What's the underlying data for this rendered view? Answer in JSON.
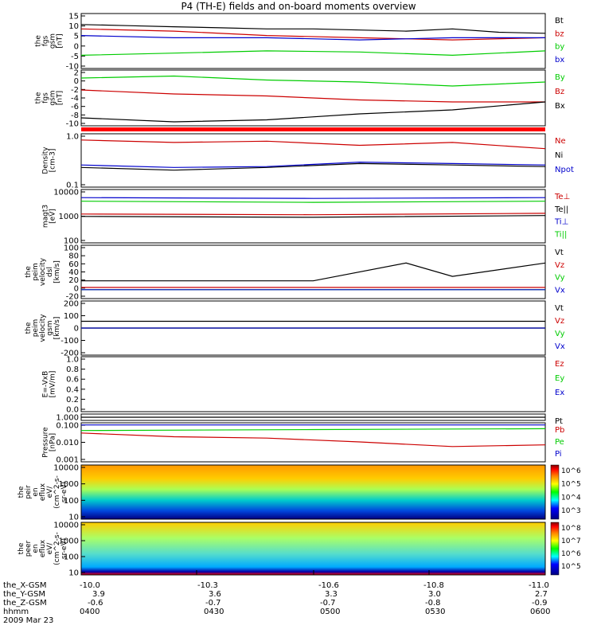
{
  "title": "P4 (TH-E) fields and on-board moments overview",
  "date": "2009 Mar 23",
  "chart_data": [
    {
      "type": "line",
      "ylabel": [
        "the",
        "fgs",
        "gsm",
        "[nT]"
      ],
      "ylim": [
        -10,
        15
      ],
      "yticks": [
        "15",
        "10",
        "5",
        "0",
        "-5",
        "-10"
      ],
      "legend": [
        {
          "name": "Bt",
          "color": "#000000"
        },
        {
          "name": "bz",
          "color": "#cc0000"
        },
        {
          "name": "by",
          "color": "#00cc00"
        },
        {
          "name": "bx",
          "color": "#0000cc"
        }
      ],
      "series": [
        {
          "name": "Bt",
          "color": "#000000",
          "x": [
            0,
            0.1,
            0.2,
            0.3,
            0.4,
            0.5,
            0.6,
            0.7,
            0.8,
            0.9,
            1.0
          ],
          "y": [
            10,
            9.5,
            9,
            8.5,
            8,
            8,
            7.5,
            7,
            8,
            6.5,
            6
          ]
        },
        {
          "name": "bz",
          "color": "#cc0000",
          "x": [
            0,
            0.2,
            0.4,
            0.6,
            0.8,
            1.0
          ],
          "y": [
            8,
            7,
            5,
            4,
            3,
            4
          ]
        },
        {
          "name": "by",
          "color": "#00cc00",
          "x": [
            0,
            0.2,
            0.4,
            0.6,
            0.8,
            1.0
          ],
          "y": [
            -4,
            -3,
            -2,
            -2.5,
            -4,
            -2
          ]
        },
        {
          "name": "bx",
          "color": "#0000cc",
          "x": [
            0,
            0.2,
            0.4,
            0.6,
            0.8,
            1.0
          ],
          "y": [
            5,
            4,
            4,
            3,
            4,
            4
          ]
        }
      ]
    },
    {
      "type": "line",
      "ylabel": [
        "the",
        "fgs",
        "gsm",
        "[nT]"
      ],
      "ylim": [
        -11,
        3
      ],
      "yticks": [
        "2",
        "0",
        "-2",
        "-4",
        "-6",
        "-8",
        "-10"
      ],
      "legend": [
        {
          "name": "By",
          "color": "#00cc00"
        },
        {
          "name": "Bz",
          "color": "#cc0000"
        },
        {
          "name": "Bx",
          "color": "#000000"
        }
      ],
      "series": [
        {
          "name": "By",
          "color": "#00cc00",
          "x": [
            0,
            0.2,
            0.4,
            0.6,
            0.8,
            1.0
          ],
          "y": [
            1,
            1.5,
            0.5,
            0,
            -1,
            0
          ]
        },
        {
          "name": "Bz",
          "color": "#cc0000",
          "x": [
            0,
            0.2,
            0.4,
            0.6,
            0.8,
            1.0
          ],
          "y": [
            -2,
            -3,
            -3.5,
            -4.5,
            -5,
            -5
          ]
        },
        {
          "name": "Bx",
          "color": "#000000",
          "x": [
            0,
            0.2,
            0.4,
            0.6,
            0.8,
            1.0
          ],
          "y": [
            -9,
            -10,
            -9.5,
            -8,
            -7,
            -5
          ]
        }
      ]
    },
    {
      "type": "line",
      "ylabel": [
        "Density",
        "[cm-3]"
      ],
      "ylim": [
        0.1,
        1.2
      ],
      "yticks": [
        "1.0",
        "0.1"
      ],
      "legend": [
        {
          "name": "Ne",
          "color": "#cc0000"
        },
        {
          "name": "Ni",
          "color": "#000000"
        },
        {
          "name": "Npot",
          "color": "#0000cc"
        }
      ],
      "series": [
        {
          "name": "Ne",
          "color": "#cc0000",
          "x": [
            0,
            0.2,
            0.4,
            0.6,
            0.8,
            1.0
          ],
          "y": [
            0.9,
            0.8,
            0.85,
            0.7,
            0.8,
            0.6
          ]
        },
        {
          "name": "Ni",
          "color": "#000000",
          "x": [
            0,
            0.2,
            0.4,
            0.6,
            0.8,
            1.0
          ],
          "y": [
            0.25,
            0.22,
            0.25,
            0.3,
            0.28,
            0.26
          ]
        },
        {
          "name": "Npot",
          "color": "#0000cc",
          "x": [
            0,
            0.2,
            0.4,
            0.6,
            0.8,
            1.0
          ],
          "y": [
            0.28,
            0.25,
            0.26,
            0.32,
            0.3,
            0.28
          ]
        }
      ]
    },
    {
      "type": "line",
      "ylabel": [
        "magt3",
        "[eV]"
      ],
      "ylim": [
        100,
        15000
      ],
      "yticks": [
        "10000",
        "1000",
        "100"
      ],
      "legend": [
        {
          "name": "Te⊥",
          "color": "#cc0000"
        },
        {
          "name": "Te||",
          "color": "#000000"
        },
        {
          "name": "Ti⊥",
          "color": "#0000cc"
        },
        {
          "name": "Ti||",
          "color": "#00cc00"
        }
      ],
      "series": [
        {
          "name": "Ti⊥",
          "color": "#0000cc",
          "x": [
            0,
            0.5,
            1.0
          ],
          "y": [
            7000,
            6500,
            7000
          ]
        },
        {
          "name": "Ti||",
          "color": "#00cc00",
          "x": [
            0,
            0.5,
            1.0
          ],
          "y": [
            5000,
            4500,
            5000
          ]
        },
        {
          "name": "Te⊥",
          "color": "#cc0000",
          "x": [
            0,
            0.5,
            1.0
          ],
          "y": [
            1500,
            1400,
            1600
          ]
        },
        {
          "name": "Te||",
          "color": "#000000",
          "x": [
            0,
            0.5,
            1.0
          ],
          "y": [
            1200,
            1100,
            1300
          ]
        }
      ]
    },
    {
      "type": "line",
      "ylabel": [
        "the",
        "peim",
        "velocity",
        "dsl",
        "[km/s]"
      ],
      "ylim": [
        -20,
        100
      ],
      "yticks": [
        "100",
        "80",
        "60",
        "40",
        "20",
        "0",
        "-20"
      ],
      "legend": [
        {
          "name": "Vt",
          "color": "#000000"
        },
        {
          "name": "Vz",
          "color": "#cc0000"
        },
        {
          "name": "Vy",
          "color": "#00cc00"
        },
        {
          "name": "Vx",
          "color": "#0000cc"
        }
      ],
      "series": [
        {
          "name": "Vt",
          "color": "#000000",
          "x": [
            0,
            0.5,
            0.7,
            0.8,
            1.0
          ],
          "y": [
            20,
            20,
            60,
            30,
            60
          ]
        },
        {
          "name": "Vz",
          "color": "#cc0000",
          "x": [
            0,
            1.0
          ],
          "y": [
            5,
            5
          ]
        },
        {
          "name": "Vy",
          "color": "#00cc00",
          "x": [
            0,
            1.0
          ],
          "y": [
            0,
            0
          ]
        },
        {
          "name": "Vx",
          "color": "#0000cc",
          "x": [
            0,
            1.0
          ],
          "y": [
            0,
            0
          ]
        }
      ]
    },
    {
      "type": "line",
      "ylabel": [
        "the",
        "peim",
        "velocity",
        "gsm",
        "[km/s]"
      ],
      "ylim": [
        -200,
        200
      ],
      "yticks": [
        "200",
        "100",
        "0",
        "-100",
        "-200"
      ],
      "legend": [
        {
          "name": "Vt",
          "color": "#000000"
        },
        {
          "name": "Vz",
          "color": "#cc0000"
        },
        {
          "name": "Vy",
          "color": "#00cc00"
        },
        {
          "name": "Vx",
          "color": "#0000cc"
        }
      ],
      "series": [
        {
          "name": "Vt",
          "color": "#000000",
          "x": [
            0,
            1.0
          ],
          "y": [
            50,
            50
          ]
        },
        {
          "name": "Vz",
          "color": "#cc0000",
          "x": [
            0,
            1.0
          ],
          "y": [
            0,
            0
          ]
        },
        {
          "name": "Vy",
          "color": "#00cc00",
          "x": [
            0,
            1.0
          ],
          "y": [
            0,
            0
          ]
        },
        {
          "name": "Vx",
          "color": "#0000cc",
          "x": [
            0,
            1.0
          ],
          "y": [
            0,
            0
          ]
        }
      ]
    },
    {
      "type": "line",
      "ylabel": [
        "E=-VxB",
        "[mV/m]"
      ],
      "ylim": [
        0,
        1
      ],
      "yticks": [
        "1.0",
        "0.8",
        "0.6",
        "0.4",
        "0.2",
        "0.0"
      ],
      "legend": [
        {
          "name": "Ez",
          "color": "#cc0000"
        },
        {
          "name": "Ey",
          "color": "#00cc00"
        },
        {
          "name": "Ex",
          "color": "#0000cc"
        }
      ],
      "series": []
    },
    {
      "type": "line",
      "ylabel": [],
      "ylim": [
        0,
        1
      ],
      "yticks": [
        "1.000"
      ],
      "legend": [
        {
          "name": "Pt",
          "color": "#000000"
        }
      ],
      "series": [
        {
          "name": "Pt",
          "color": "#000000",
          "x": [
            0,
            1.0
          ],
          "y": [
            0.5,
            0.5
          ]
        }
      ]
    },
    {
      "type": "line",
      "ylabel": [
        "Pressure",
        "[nPa]"
      ],
      "ylim": [
        0.001,
        0.2
      ],
      "yticks": [
        "0.100",
        "0.010",
        "0.001"
      ],
      "legend": [
        {
          "name": "Pb",
          "color": "#cc0000"
        },
        {
          "name": "Pe",
          "color": "#00cc00"
        },
        {
          "name": "Pi",
          "color": "#0000cc"
        }
      ],
      "series": [
        {
          "name": "Pb",
          "color": "#cc0000",
          "x": [
            0,
            0.2,
            0.4,
            0.6,
            0.8,
            1.0
          ],
          "y": [
            0.05,
            0.03,
            0.025,
            0.015,
            0.008,
            0.01
          ]
        },
        {
          "name": "Pe",
          "color": "#00cc00",
          "x": [
            0,
            0.5,
            1.0
          ],
          "y": [
            0.07,
            0.08,
            0.09
          ]
        },
        {
          "name": "Pi",
          "color": "#0000cc",
          "x": [
            0,
            1.0
          ],
          "y": [
            0.15,
            0.15
          ]
        }
      ]
    },
    {
      "type": "heatmap",
      "ylabel": [
        "the",
        "peir",
        "en",
        "eflux",
        "eV/",
        "(cm^2-s-",
        "sr-eV)"
      ],
      "yticks": [
        "10000",
        "1000",
        "100",
        "10"
      ],
      "colorbar_ticks": [
        "10^6",
        "10^5",
        "10^4",
        "10^3"
      ]
    },
    {
      "type": "heatmap",
      "ylabel": [
        "the",
        "peer",
        "en",
        "eflux",
        "eV/",
        "(cm^2-s-",
        "sr-eV)"
      ],
      "yticks": [
        "10000",
        "1000",
        "100",
        "10"
      ],
      "colorbar_ticks": [
        "10^8",
        "10^7",
        "10^6",
        "10^5"
      ]
    }
  ],
  "x_axis": {
    "labels": [
      "the_X-GSM",
      "the_Y-GSM",
      "the_Z-GSM",
      "hhmm"
    ],
    "the_X-GSM": [
      "-10.0",
      "-10.3",
      "-10.6",
      "-10.8",
      "-11.0"
    ],
    "the_Y-GSM": [
      "3.9",
      "3.6",
      "3.3",
      "3.0",
      "2.7"
    ],
    "the_Z-GSM": [
      "-0.6",
      "-0.7",
      "-0.7",
      "-0.8",
      "-0.9"
    ],
    "hhmm": [
      "0400",
      "0430",
      "0500",
      "0530",
      "0600"
    ]
  }
}
